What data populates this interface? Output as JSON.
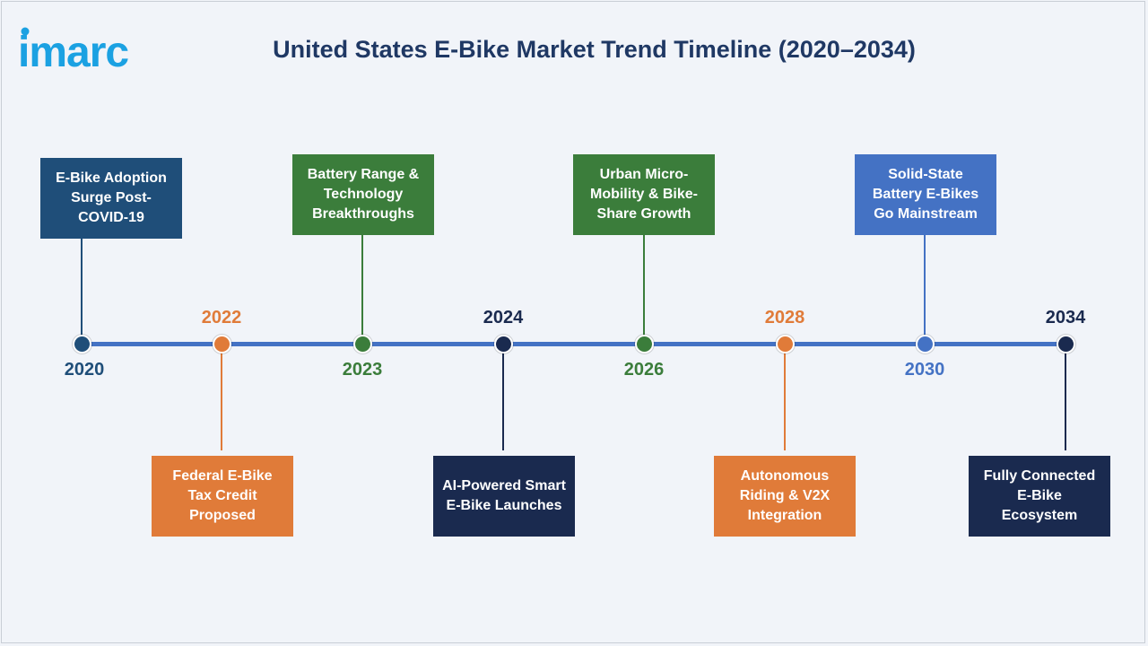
{
  "logo": {
    "text": "imarc"
  },
  "title": "United States E-Bike Market Trend Timeline (2020–2034)",
  "colors": {
    "navy": "#1f3864",
    "teal_blue": "#1f4e79",
    "green": "#3b7d3b",
    "orange": "#e07b39",
    "blue": "#4472c4",
    "dark": "#1a2a4f",
    "axis": "#4472c4",
    "background": "#f1f4f9"
  },
  "milestones": [
    {
      "year": "2020",
      "event": "E-Bike Adoption Surge Post-COVID-19",
      "color": "#1f4e79"
    },
    {
      "year": "2022",
      "event": "Federal E-Bike Tax Credit Proposed",
      "color": "#e07b39"
    },
    {
      "year": "2023",
      "event": "Battery Range & Technology Breakthroughs",
      "color": "#3b7d3b"
    },
    {
      "year": "2024",
      "event": "AI-Powered Smart E-Bike Launches",
      "color": "#1a2a4f"
    },
    {
      "year": "2026",
      "event": "Urban Micro-Mobility & Bike-Share Growth",
      "color": "#3b7d3b"
    },
    {
      "year": "2028",
      "event": "Autonomous Riding & V2X Integration",
      "color": "#e07b39"
    },
    {
      "year": "2030",
      "event": "Solid-State Battery E-Bikes Go Mainstream",
      "color": "#4472c4"
    },
    {
      "year": "2034",
      "event": "Fully Connected E-Bike Ecosystem",
      "color": "#1a2a4f"
    }
  ]
}
